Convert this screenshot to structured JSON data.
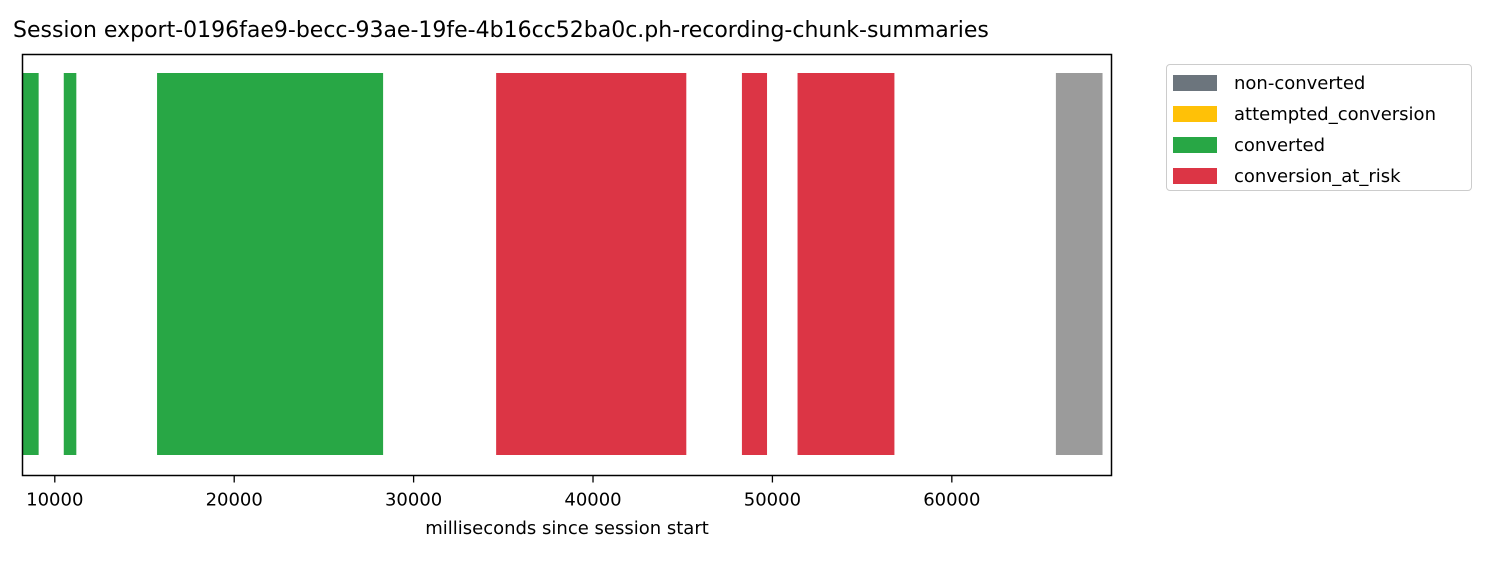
{
  "chart_data": {
    "type": "bar",
    "subtype": "timeline",
    "title": "Session export-0196fae9-becc-93ae-19fe-4b16cc52ba0c.ph-recording-chunk-summaries",
    "xlabel": "milliseconds since session start",
    "ylabel": "",
    "xlim": [
      8200,
      68900
    ],
    "xticks": [
      10000,
      20000,
      30000,
      40000,
      50000,
      60000
    ],
    "xtick_labels": [
      "10000",
      "20000",
      "30000",
      "40000",
      "50000",
      "60000"
    ],
    "grid": false,
    "legend_position": "outside-right",
    "legend": [
      {
        "label": "non-converted",
        "color": "#6c757d"
      },
      {
        "label": "attempted_conversion",
        "color": "#ffc107"
      },
      {
        "label": "converted",
        "color": "#28a745"
      },
      {
        "label": "conversion_at_risk",
        "color": "#dc3545"
      }
    ],
    "segments": [
      {
        "start": 8200,
        "end": 9100,
        "category": "converted",
        "color": "#28a745"
      },
      {
        "start": 10500,
        "end": 11200,
        "category": "converted",
        "color": "#28a745"
      },
      {
        "start": 15700,
        "end": 28300,
        "category": "converted",
        "color": "#28a745"
      },
      {
        "start": 34600,
        "end": 45200,
        "category": "conversion_at_risk",
        "color": "#dc3545"
      },
      {
        "start": 48300,
        "end": 49700,
        "category": "conversion_at_risk",
        "color": "#dc3545"
      },
      {
        "start": 51400,
        "end": 56800,
        "category": "conversion_at_risk",
        "color": "#dc3545"
      },
      {
        "start": 65800,
        "end": 68400,
        "category": "unlabeled",
        "color": "#9b9b9b"
      }
    ]
  }
}
